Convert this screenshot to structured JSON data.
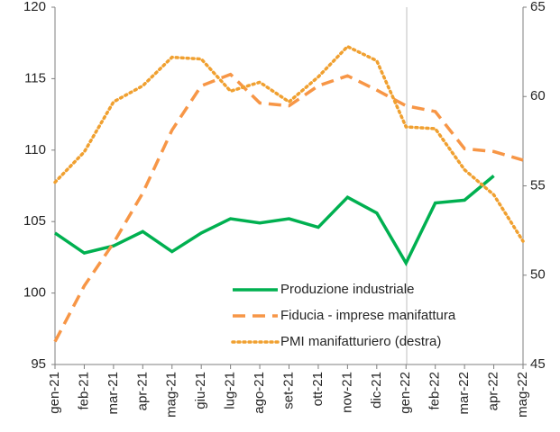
{
  "chart_data": {
    "type": "line",
    "categories": [
      "gen-21",
      "feb-21",
      "mar-21",
      "apr-21",
      "mag-21",
      "giu-21",
      "lug-21",
      "ago-21",
      "set-21",
      "ott-21",
      "nov-21",
      "dic-21",
      "gen-22",
      "feb-22",
      "mar-22",
      "apr-22",
      "mag-22"
    ],
    "series": [
      {
        "name": "Produzione industriale",
        "color": "#00b050",
        "style": "solid",
        "values": [
          104.2,
          102.8,
          103.3,
          104.3,
          102.9,
          104.2,
          105.2,
          104.9,
          105.2,
          104.6,
          106.7,
          105.6,
          102.1,
          106.3,
          106.5,
          108.2,
          null
        ]
      },
      {
        "name": "Fiducia - imprese manifattura",
        "color": "#f79646",
        "style": "dashed",
        "values": [
          96.6,
          100.5,
          103.5,
          107.0,
          111.4,
          114.5,
          115.3,
          113.3,
          113.1,
          114.5,
          115.2,
          114.2,
          113.1,
          112.7,
          110.1,
          109.9,
          109.3
        ]
      },
      {
        "name": "PMI manifatturiero (destra)",
        "color": "#f0a030",
        "style": "dotted",
        "axis": "y2",
        "values": [
          55.2,
          56.9,
          59.7,
          60.6,
          62.2,
          62.1,
          60.3,
          60.8,
          59.7,
          61.1,
          62.8,
          62.0,
          58.3,
          58.2,
          55.9,
          54.5,
          51.9
        ]
      }
    ],
    "ylim": [
      95,
      120
    ],
    "yticks": [
      95,
      100,
      105,
      110,
      115,
      120
    ],
    "y2lim": [
      45,
      65
    ],
    "y2ticks": [
      45,
      50,
      55,
      60,
      65
    ],
    "legend": "lower right"
  }
}
